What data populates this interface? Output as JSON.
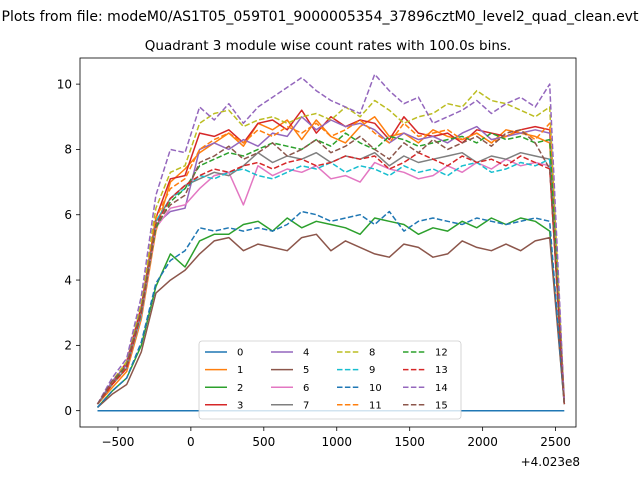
{
  "suptitle": "Plots from file: modeM0/AS1T05_059T01_9000005354_37896cztM0_level2_quad_clean.evt",
  "chart_data": {
    "type": "line",
    "title": "Quadrant 3 module wise count rates with 100.0s bins.",
    "xlabel": "",
    "ylabel": "",
    "x_offset_label": "+4.023e8",
    "xlim": [
      -760,
      2640
    ],
    "ylim": [
      -0.5,
      10.8
    ],
    "xticks": [
      -500,
      0,
      500,
      1000,
      1500,
      2000,
      2500
    ],
    "xtick_labels": [
      "−500",
      "0",
      "500",
      "1000",
      "1500",
      "2000",
      "2500"
    ],
    "yticks": [
      0,
      2,
      4,
      6,
      8,
      10
    ],
    "ytick_labels": [
      "0",
      "2",
      "4",
      "6",
      "8",
      "10"
    ],
    "grid": false,
    "legend_position": "lower-center",
    "legend_columns": 4,
    "x": [
      -640,
      -540,
      -440,
      -340,
      -240,
      -140,
      -40,
      60,
      160,
      260,
      360,
      460,
      560,
      660,
      760,
      860,
      960,
      1060,
      1160,
      1260,
      1360,
      1460,
      1560,
      1660,
      1760,
      1860,
      1960,
      2060,
      2160,
      2260,
      2360,
      2460,
      2560
    ],
    "series": [
      {
        "name": "0",
        "color": "#1f77b4",
        "dash": "solid",
        "values": [
          0,
          0,
          0,
          0,
          0,
          0,
          0,
          0,
          0,
          0,
          0,
          0,
          0,
          0,
          0,
          0,
          0,
          0,
          0,
          0,
          0,
          0,
          0,
          0,
          0,
          0,
          0,
          0,
          0,
          0,
          0,
          0,
          0
        ]
      },
      {
        "name": "1",
        "color": "#ff7f0e",
        "dash": "solid",
        "values": [
          0.2,
          0.7,
          1.2,
          2.8,
          5.5,
          7.0,
          7.4,
          7.9,
          8.2,
          8.5,
          8.1,
          8.8,
          8.6,
          8.9,
          8.3,
          8.9,
          8.4,
          8.2,
          8.7,
          9.0,
          8.4,
          8.5,
          8.2,
          8.6,
          8.4,
          8.3,
          8.5,
          8.2,
          8.6,
          8.5,
          8.4,
          8.2,
          0.2
        ]
      },
      {
        "name": "2",
        "color": "#2ca02c",
        "dash": "solid",
        "values": [
          0.1,
          0.6,
          1.0,
          2.0,
          3.8,
          4.8,
          4.4,
          5.2,
          5.4,
          5.4,
          5.7,
          5.8,
          5.5,
          5.9,
          5.6,
          5.8,
          5.7,
          5.6,
          5.4,
          5.9,
          5.8,
          5.7,
          5.4,
          5.6,
          5.5,
          5.8,
          5.6,
          5.9,
          5.7,
          5.9,
          5.8,
          5.5,
          0.2
        ]
      },
      {
        "name": "3",
        "color": "#d62728",
        "dash": "solid",
        "values": [
          0.2,
          0.8,
          1.5,
          3.2,
          5.9,
          7.1,
          7.2,
          8.5,
          8.4,
          8.6,
          8.2,
          8.8,
          8.9,
          8.6,
          9.2,
          8.5,
          9.0,
          8.7,
          8.9,
          8.8,
          8.3,
          9.0,
          8.5,
          8.4,
          8.5,
          8.2,
          8.6,
          8.5,
          8.4,
          8.6,
          8.7,
          8.6,
          0.3
        ]
      },
      {
        "name": "4",
        "color": "#9467bd",
        "dash": "solid",
        "values": [
          0.2,
          0.9,
          1.4,
          3.0,
          5.7,
          6.1,
          6.2,
          8.0,
          8.2,
          8.0,
          8.3,
          8.1,
          8.5,
          8.4,
          9.0,
          8.6,
          8.9,
          8.7,
          8.8,
          8.6,
          8.2,
          8.5,
          8.3,
          8.4,
          8.2,
          8.5,
          8.7,
          8.3,
          8.4,
          8.5,
          8.6,
          8.5,
          0.2
        ]
      },
      {
        "name": "5",
        "color": "#8c564b",
        "dash": "solid",
        "values": [
          0.1,
          0.5,
          0.8,
          1.8,
          3.6,
          4.0,
          4.3,
          4.8,
          5.2,
          5.3,
          4.9,
          5.1,
          5.0,
          4.9,
          5.3,
          5.4,
          4.9,
          5.2,
          5.0,
          4.8,
          4.7,
          5.1,
          5.0,
          4.7,
          4.8,
          5.2,
          5.0,
          4.9,
          5.1,
          4.9,
          5.2,
          5.3,
          0.2
        ]
      },
      {
        "name": "6",
        "color": "#e377c2",
        "dash": "solid",
        "values": [
          0.2,
          0.8,
          1.3,
          2.9,
          5.6,
          6.2,
          6.3,
          6.8,
          7.2,
          7.3,
          6.3,
          7.5,
          7.2,
          7.4,
          7.3,
          7.5,
          7.1,
          7.2,
          7.0,
          7.6,
          7.4,
          7.3,
          7.1,
          7.2,
          7.5,
          7.3,
          7.6,
          7.4,
          7.7,
          7.5,
          7.6,
          7.5,
          0.2
        ]
      },
      {
        "name": "7",
        "color": "#7f7f7f",
        "dash": "solid",
        "values": [
          0.2,
          0.8,
          1.3,
          3.0,
          5.8,
          6.5,
          6.9,
          7.1,
          7.3,
          7.2,
          7.5,
          7.9,
          7.6,
          7.8,
          7.7,
          7.9,
          7.6,
          7.8,
          7.7,
          7.9,
          7.5,
          7.8,
          7.6,
          7.7,
          7.8,
          7.9,
          7.6,
          7.8,
          7.7,
          7.9,
          7.8,
          7.7,
          0.2
        ]
      },
      {
        "name": "8",
        "color": "#bcbd22",
        "dash": "dashed",
        "values": [
          0.2,
          0.9,
          1.5,
          3.3,
          6.2,
          7.3,
          7.5,
          8.8,
          9.1,
          9.2,
          8.7,
          8.9,
          9.0,
          8.8,
          9.0,
          9.1,
          8.9,
          9.3,
          9.0,
          9.5,
          9.2,
          8.8,
          9.0,
          9.1,
          9.4,
          9.3,
          9.8,
          9.5,
          9.4,
          9.2,
          9.0,
          9.3,
          0.2
        ]
      },
      {
        "name": "9",
        "color": "#17becf",
        "dash": "dashed",
        "values": [
          0.2,
          0.8,
          1.3,
          2.9,
          5.8,
          6.5,
          6.8,
          7.2,
          7.1,
          7.3,
          7.4,
          7.2,
          7.1,
          7.3,
          7.5,
          7.4,
          7.6,
          7.3,
          7.5,
          7.4,
          7.2,
          7.5,
          7.3,
          7.4,
          7.2,
          7.5,
          7.6,
          7.3,
          7.4,
          7.6,
          7.5,
          7.7,
          0.2
        ]
      },
      {
        "name": "10",
        "color": "#1f77b4",
        "dash": "dashed",
        "values": [
          0.1,
          0.6,
          1.0,
          2.1,
          3.9,
          4.6,
          4.9,
          5.6,
          5.5,
          5.6,
          5.5,
          5.6,
          5.5,
          5.7,
          6.1,
          6.0,
          5.8,
          5.9,
          6.0,
          5.7,
          6.1,
          5.5,
          5.8,
          5.9,
          5.8,
          5.7,
          5.9,
          5.8,
          5.7,
          5.8,
          5.9,
          5.8,
          0.2
        ]
      },
      {
        "name": "11",
        "color": "#ff7f0e",
        "dash": "dashed",
        "values": [
          0.2,
          0.8,
          1.3,
          3.0,
          5.9,
          6.8,
          7.1,
          8.0,
          8.3,
          8.5,
          8.2,
          8.6,
          8.4,
          8.7,
          8.5,
          8.8,
          8.4,
          8.6,
          8.9,
          8.5,
          8.2,
          8.8,
          8.4,
          8.5,
          8.6,
          8.3,
          8.5,
          8.2,
          8.4,
          8.6,
          8.3,
          8.8,
          0.2
        ]
      },
      {
        "name": "12",
        "color": "#2ca02c",
        "dash": "dashed",
        "values": [
          0.2,
          0.8,
          1.4,
          3.0,
          5.6,
          6.4,
          6.8,
          7.5,
          7.7,
          7.9,
          7.8,
          8.0,
          8.2,
          8.1,
          8.0,
          8.3,
          8.1,
          8.5,
          8.2,
          8.0,
          8.4,
          8.3,
          8.1,
          8.2,
          8.3,
          8.4,
          8.2,
          8.5,
          8.3,
          8.4,
          8.2,
          8.3,
          0.2
        ]
      },
      {
        "name": "13",
        "color": "#d62728",
        "dash": "dashed",
        "values": [
          0.2,
          0.8,
          1.3,
          3.0,
          5.7,
          6.5,
          6.9,
          7.2,
          7.4,
          7.3,
          7.5,
          7.6,
          7.4,
          7.6,
          7.7,
          7.5,
          7.6,
          7.8,
          7.7,
          7.8,
          7.4,
          7.6,
          7.9,
          7.7,
          7.5,
          7.8,
          7.6,
          7.7,
          7.5,
          7.8,
          7.6,
          7.4,
          0.2
        ]
      },
      {
        "name": "14",
        "color": "#9467bd",
        "dash": "dashed",
        "values": [
          0.2,
          1.0,
          1.6,
          3.5,
          6.6,
          8.0,
          7.9,
          9.3,
          8.9,
          9.4,
          8.8,
          9.3,
          9.6,
          9.9,
          10.2,
          9.8,
          9.5,
          9.3,
          9.1,
          10.3,
          9.8,
          9.4,
          9.6,
          8.8,
          9.0,
          9.2,
          9.5,
          9.1,
          9.4,
          9.6,
          9.3,
          10.0,
          0.2
        ]
      },
      {
        "name": "15",
        "color": "#8c564b",
        "dash": "dashed",
        "values": [
          0.2,
          0.9,
          1.4,
          3.1,
          5.7,
          6.3,
          6.6,
          7.6,
          7.8,
          8.1,
          7.7,
          7.9,
          8.2,
          7.8,
          8.0,
          8.3,
          7.9,
          8.1,
          8.4,
          8.0,
          7.7,
          8.2,
          7.9,
          8.3,
          8.0,
          8.2,
          8.4,
          8.1,
          8.5,
          8.6,
          8.2,
          7.4,
          0.2
        ]
      }
    ]
  }
}
